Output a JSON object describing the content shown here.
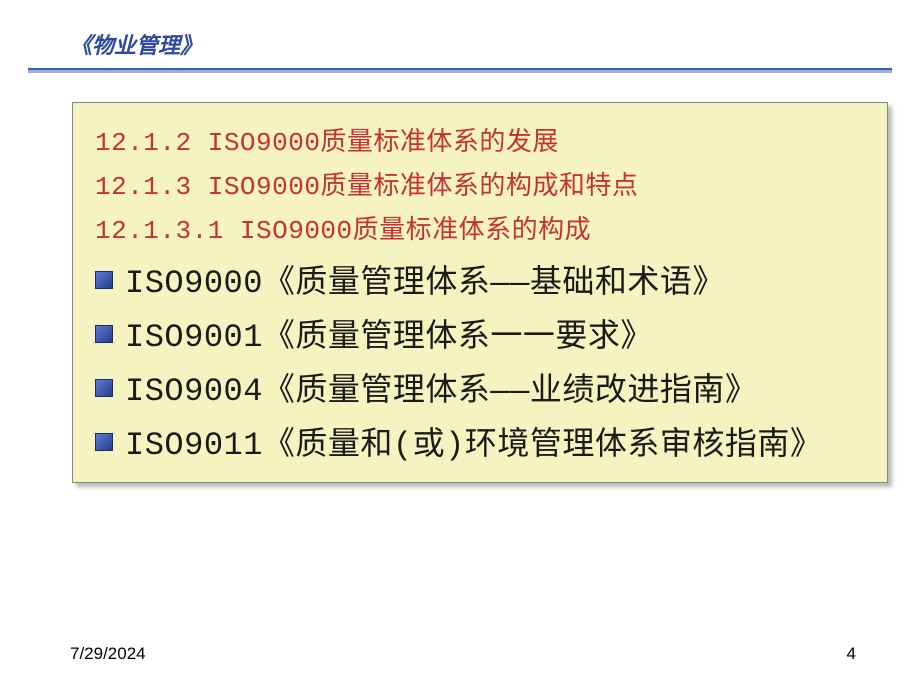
{
  "header": {
    "title": "《物业管理》"
  },
  "content": {
    "headings": [
      "12.1.2 ISO9000质量标准体系的发展",
      "12.1.3 ISO9000质量标准体系的构成和特点",
      "12.1.3.1 ISO9000质量标准体系的构成"
    ],
    "bullets": [
      "ISO9000《质量管理体系——基础和术语》",
      "ISO9001《质量管理体系一一要求》",
      "ISO9004《质量管理体系——业绩改进指南》",
      "ISO9011《质量和(或)环境管理体系审核指南》"
    ]
  },
  "footer": {
    "date": "7/29/2024",
    "page": "4"
  },
  "colors": {
    "header_text": "#2d4a9e",
    "divider": "#3a5bb8",
    "content_bg": "#f5f3c0",
    "heading_text": "#c83232",
    "bullet_text": "#1a1a1a",
    "bullet_icon_start": "#5a7ad8",
    "bullet_icon_end": "#2a3e8a"
  }
}
